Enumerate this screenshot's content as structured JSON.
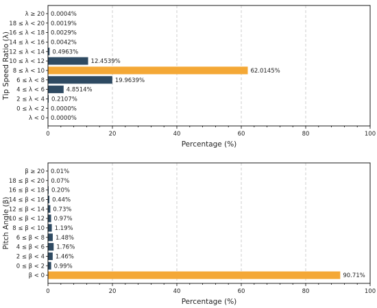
{
  "chart_data": [
    {
      "type": "bar",
      "orientation": "horizontal",
      "xlabel": "Percentage (%)",
      "ylabel": "Tip Speed Ratio (λ)",
      "xlim": [
        0,
        100
      ],
      "xticks": [
        0,
        20,
        40,
        60,
        80,
        100
      ],
      "grid": "vertical-dashed",
      "categories": [
        "λ ≥ 20",
        "18 ≤ λ < 20",
        "16 ≤ λ < 18",
        "14 ≤ λ < 16",
        "12 ≤ λ < 14",
        "10 ≤ λ < 12",
        "8 ≤ λ < 10",
        "6 ≤ λ < 8",
        "4 ≤ λ < 6",
        "2 ≤ λ < 4",
        "0 ≤ λ < 2",
        "λ < 0"
      ],
      "values": [
        0.0004,
        0.0019,
        0.0029,
        0.0042,
        0.4963,
        12.4539,
        62.0145,
        19.9639,
        4.8514,
        0.2107,
        0.0,
        0.0
      ],
      "value_labels": [
        "0.0004%",
        "0.0019%",
        "0.0029%",
        "0.0042%",
        "0.4963%",
        "12.4539%",
        "62.0145%",
        "19.9639%",
        "4.8514%",
        "0.2107%",
        "0.0000%",
        "0.0000%"
      ],
      "highlight_index": 6
    },
    {
      "type": "bar",
      "orientation": "horizontal",
      "xlabel": "Percentage (%)",
      "ylabel": "Pitch Angle (β)",
      "xlim": [
        0,
        100
      ],
      "xticks": [
        0,
        20,
        40,
        60,
        80,
        100
      ],
      "grid": "vertical-dashed",
      "categories": [
        "β ≥ 20",
        "18 ≤ β < 20",
        "16 ≤ β < 18",
        "14 ≤ β < 16",
        "12 ≤ β < 14",
        "10 ≤ β < 12",
        "8 ≤ β < 10",
        "6 ≤ β < 8",
        "4 ≤ β < 6",
        "2 ≤ β < 4",
        "0 ≤ β < 2",
        "β < 0"
      ],
      "values": [
        0.01,
        0.07,
        0.2,
        0.44,
        0.73,
        0.97,
        1.19,
        1.48,
        1.76,
        1.46,
        0.99,
        90.71
      ],
      "value_labels": [
        "0.01%",
        "0.07%",
        "0.20%",
        "0.44%",
        "0.73%",
        "0.97%",
        "1.19%",
        "1.48%",
        "1.76%",
        "1.46%",
        "0.99%",
        "90.71%"
      ],
      "highlight_index": 11
    }
  ],
  "colors": {
    "bar": "#2e4a62",
    "highlight": "#f4a836",
    "grid": "#c0c0c0",
    "axis": "#000000",
    "text": "#222222"
  }
}
